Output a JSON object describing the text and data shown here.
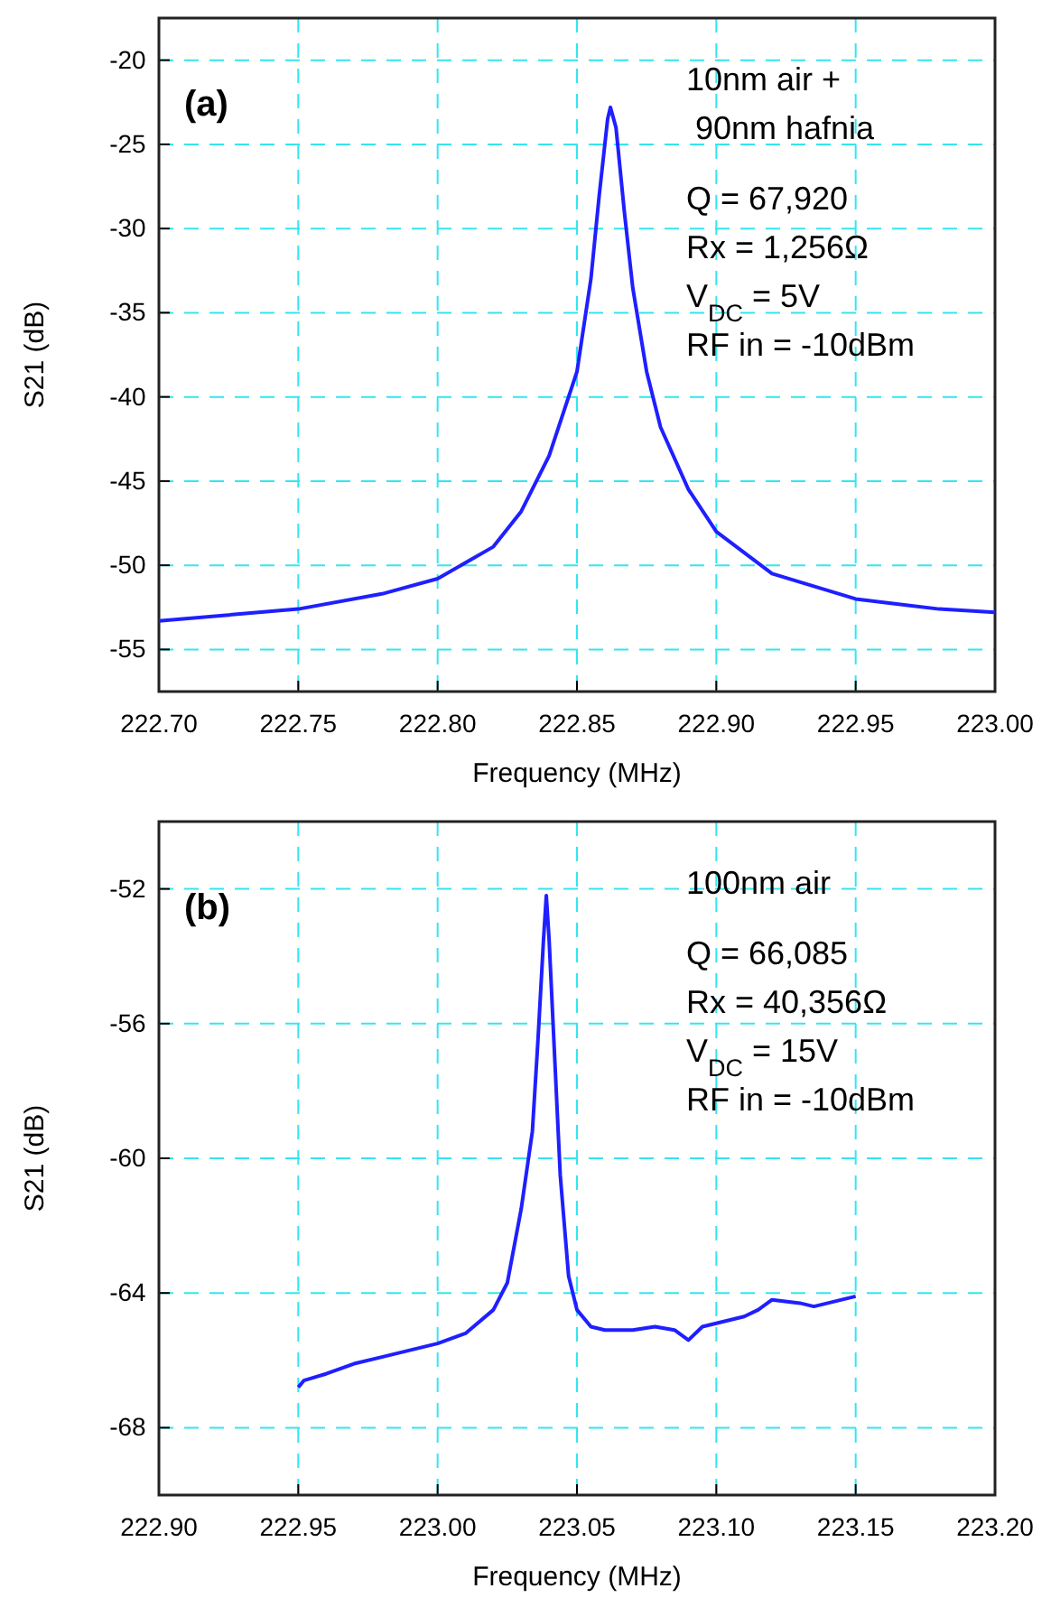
{
  "chart_data": [
    {
      "type": "line",
      "xlabel": "Frequency (MHz)",
      "ylabel": "S21 (dB)",
      "xlim": [
        222.7,
        223.0
      ],
      "xticks": [
        {
          "value": 222.7,
          "label": "222.70"
        },
        {
          "value": 222.75,
          "label": "222.75"
        },
        {
          "value": 222.8,
          "label": "222.80"
        },
        {
          "value": 222.85,
          "label": "222.85"
        },
        {
          "value": 222.9,
          "label": "222.90"
        },
        {
          "value": 222.95,
          "label": "222.95"
        },
        {
          "value": 223.0,
          "label": "223.00"
        }
      ],
      "ylim": [
        -57.5,
        -17.5
      ],
      "yticks": [
        -55,
        -50,
        -45,
        -40,
        -35,
        -30,
        -25,
        -20
      ],
      "grid": true,
      "marker": "none",
      "line_style": "solid",
      "annotations": [
        "(a)",
        "10nm air +\n 90nm hafnia",
        "Q = 67,920\nRx = 1,256Ω\nV$_{DC}$ = 5V\nRF in = -10dBm"
      ],
      "series": [
        {
          "color": "#1f1fff",
          "x": [
            222.7,
            222.75,
            222.78,
            222.8,
            222.82,
            222.83,
            222.84,
            222.85,
            222.855,
            222.858,
            222.861,
            222.862,
            222.864,
            222.867,
            222.87,
            222.875,
            222.88,
            222.89,
            222.9,
            222.92,
            222.95,
            222.98,
            223.0
          ],
          "values": [
            -53.3,
            -52.6,
            -51.7,
            -50.8,
            -48.9,
            -46.8,
            -43.5,
            -38.5,
            -33,
            -28,
            -23.5,
            -22.8,
            -24,
            -29,
            -33.5,
            -38.5,
            -41.8,
            -45.5,
            -48,
            -50.5,
            -52,
            -52.6,
            -52.8
          ]
        }
      ]
    },
    {
      "type": "line",
      "xlabel": "Frequency (MHz)",
      "ylabel": "S21 (dB)",
      "xlim": [
        222.9,
        223.2
      ],
      "xticks": [
        {
          "value": 222.9,
          "label": "222.90"
        },
        {
          "value": 222.95,
          "label": "222.95"
        },
        {
          "value": 223.0,
          "label": "223.00"
        },
        {
          "value": 223.05,
          "label": "223.05"
        },
        {
          "value": 223.1,
          "label": "223.10"
        },
        {
          "value": 223.15,
          "label": "223.15"
        },
        {
          "value": 223.2,
          "label": "223.20"
        }
      ],
      "ylim": [
        -70,
        -50
      ],
      "yticks": [
        -68,
        -64,
        -60,
        -56,
        -52
      ],
      "grid": true,
      "marker": "none",
      "line_style": "solid",
      "annotations": [
        "(b)",
        "100nm air",
        "Q = 66,085\nRx = 40,356Ω\nV$_{DC}$ = 15V\nRF in = -10dBm"
      ],
      "series": [
        {
          "color": "#1f1fff",
          "x": [
            222.95,
            222.952,
            222.96,
            222.97,
            222.98,
            222.99,
            223.0,
            223.01,
            223.02,
            223.025,
            223.03,
            223.034,
            223.036,
            223.038,
            223.039,
            223.04,
            223.042,
            223.044,
            223.047,
            223.05,
            223.055,
            223.06,
            223.07,
            223.078,
            223.085,
            223.09,
            223.095,
            223.1,
            223.11,
            223.115,
            223.12,
            223.13,
            223.135,
            223.14,
            223.145,
            223.15
          ],
          "values": [
            -66.8,
            -66.6,
            -66.4,
            -66.1,
            -65.9,
            -65.7,
            -65.5,
            -65.2,
            -64.5,
            -63.7,
            -61.5,
            -59.2,
            -56.5,
            -53.5,
            -52.2,
            -53.5,
            -57,
            -60.5,
            -63.5,
            -64.5,
            -65,
            -65.1,
            -65.1,
            -65,
            -65.1,
            -65.4,
            -65,
            -64.9,
            -64.7,
            -64.5,
            -64.2,
            -64.3,
            -64.4,
            -64.3,
            -64.2,
            -64.1
          ]
        }
      ]
    }
  ]
}
